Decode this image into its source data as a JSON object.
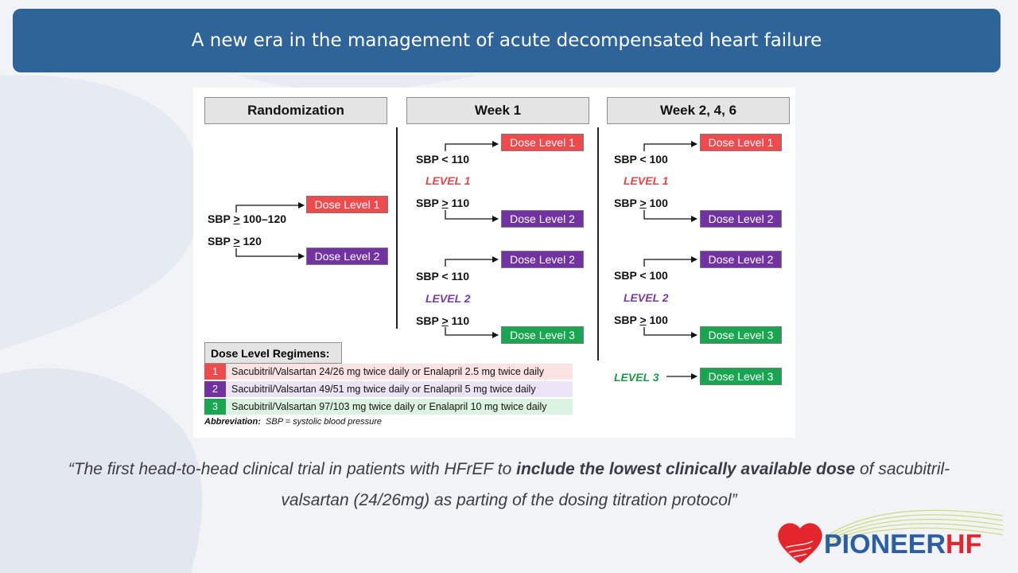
{
  "slide": {
    "title": "A new era in the management of acute decompensated heart failure"
  },
  "diagram": {
    "headers": {
      "randomization": "Randomization",
      "week1": "Week 1",
      "week246": "Week 2, 4, 6"
    },
    "randomization": {
      "sbp_a_prefix": "SBP ",
      "sbp_a_ge": ">",
      "sbp_a_suffix": " 100–120",
      "sbp_b_prefix": "SBP ",
      "sbp_b_ge": ">",
      "sbp_b_suffix": " 120",
      "dose_a": "Dose Level 1",
      "dose_b": "Dose Level 2"
    },
    "week1": {
      "l1_lt": "SBP < 110",
      "l1_label": "LEVEL 1",
      "l1_ge_prefix": "SBP ",
      "l1_ge_sym": ">",
      "l1_ge_suffix": " 110",
      "l1_dose_top": "Dose Level 1",
      "l1_dose_bottom": "Dose Level 2",
      "l2_lt": "SBP < 110",
      "l2_label": "LEVEL 2",
      "l2_ge_prefix": "SBP ",
      "l2_ge_sym": ">",
      "l2_ge_suffix": " 110",
      "l2_dose_top": "Dose Level 2",
      "l2_dose_bottom": "Dose Level 3"
    },
    "week246": {
      "l1_lt": "SBP < 100",
      "l1_label": "LEVEL 1",
      "l1_ge_prefix": "SBP ",
      "l1_ge_sym": ">",
      "l1_ge_suffix": " 100",
      "l1_dose_top": "Dose Level 1",
      "l1_dose_bottom": "Dose Level 2",
      "l2_lt": "SBP < 100",
      "l2_label": "LEVEL 2",
      "l2_ge_prefix": "SBP ",
      "l2_ge_sym": ">",
      "l2_ge_suffix": " 100",
      "l2_dose_top": "Dose Level 2",
      "l2_dose_bottom": "Dose Level 3",
      "l3_label": "LEVEL 3",
      "l3_dose": "Dose Level 3"
    },
    "regimens": {
      "title": "Dose Level Regimens:",
      "rows": [
        {
          "num": "1",
          "text": "Sacubitril/Valsartan  24/26 mg  twice daily or Enalapril  2.5 mg  twice daily"
        },
        {
          "num": "2",
          "text": "Sacubitril/Valsartan  49/51 mg  twice daily or Enalapril  5 mg  twice daily"
        },
        {
          "num": "3",
          "text": "Sacubitril/Valsartan  97/103 mg  twice daily or Enalapril  10 mg  twice daily"
        }
      ]
    },
    "abbreviation": {
      "label": "Abbreviation:",
      "text": "  SBP = systolic blood pressure"
    }
  },
  "quote": {
    "part1": "“The first head-to-head clinical trial in patients with HFrEF to ",
    "bold": "include the lowest clinically available dose",
    "part2": " of sacubitril-valsartan (24/26mg) as parting of the dosing titration protocol”"
  },
  "logo": {
    "text_main": "PIONEER",
    "text_accent": "HF"
  },
  "colors": {
    "title_bar": "#2e6497",
    "dose_level_1": "#ef4a4e",
    "dose_level_2": "#7232a2",
    "dose_level_3": "#18a650",
    "logo_blue": "#2a5fa6",
    "logo_red": "#e2262b"
  }
}
